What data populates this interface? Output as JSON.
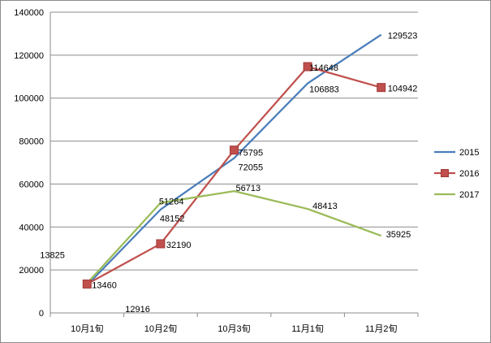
{
  "chart_data": {
    "type": "line",
    "categories": [
      "10月1旬",
      "10月2旬",
      "10月3旬",
      "11月1旬",
      "11月2旬"
    ],
    "ylim": [
      0,
      140000
    ],
    "y_ticks": [
      0,
      20000,
      40000,
      60000,
      80000,
      100000,
      120000,
      140000
    ],
    "grid": true,
    "legend": "right",
    "series": [
      {
        "name": "2015",
        "color": "#4a7ebb",
        "marker": "none",
        "values": [
          12916,
          48152,
          72055,
          106883,
          129523
        ],
        "labels": [
          "12916",
          "48152",
          "72055",
          "106883",
          "129523"
        ]
      },
      {
        "name": "2016",
        "color": "#c0504d",
        "marker": "square",
        "values": [
          13460,
          32190,
          75795,
          114648,
          104942
        ],
        "labels": [
          "13460",
          "32190",
          "75795",
          "114648",
          "104942"
        ]
      },
      {
        "name": "2017",
        "color": "#9bbb59",
        "marker": "none",
        "values": [
          13825,
          51264,
          56713,
          48413,
          35925
        ],
        "labels": [
          "13825",
          "51264",
          "56713",
          "48413",
          "35925"
        ]
      }
    ]
  }
}
